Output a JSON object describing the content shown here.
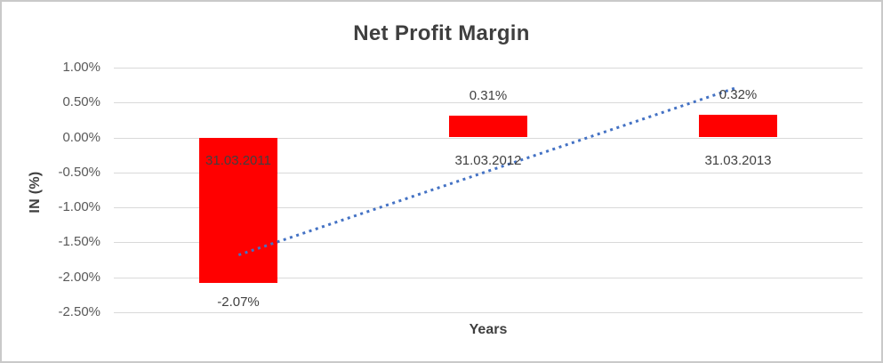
{
  "chart_data": {
    "type": "bar",
    "title": "Net Profit Margin",
    "xlabel": "Years",
    "ylabel": "IN (%)",
    "categories": [
      "31.03.2011",
      "31.03.2012",
      "31.03.2013"
    ],
    "values": [
      -2.07,
      0.31,
      0.32
    ],
    "value_labels": [
      "-2.07%",
      "0.31%",
      "0.32%"
    ],
    "ylim": [
      -2.5,
      1.0
    ],
    "yticks": [
      1.0,
      0.5,
      0.0,
      -0.5,
      -1.0,
      -1.5,
      -2.0,
      -2.5
    ],
    "ytick_labels": [
      "1.00%",
      "0.50%",
      "0.00%",
      "-0.50%",
      "-1.00%",
      "-1.50%",
      "-2.00%",
      "-2.50%"
    ],
    "grid": true,
    "legend": "none",
    "bar_color": "#FF0000",
    "trendline": {
      "type": "linear",
      "style": "dotted",
      "color": "#4472C4",
      "start_value": -1.68,
      "end_value": 0.72
    }
  },
  "colors": {
    "background": "#FFFFFF",
    "border": "#C9C9C9",
    "gridline": "#D9D9D9",
    "title_text": "#3F3F3F",
    "tick_text": "#595959",
    "label_text": "#404040"
  }
}
